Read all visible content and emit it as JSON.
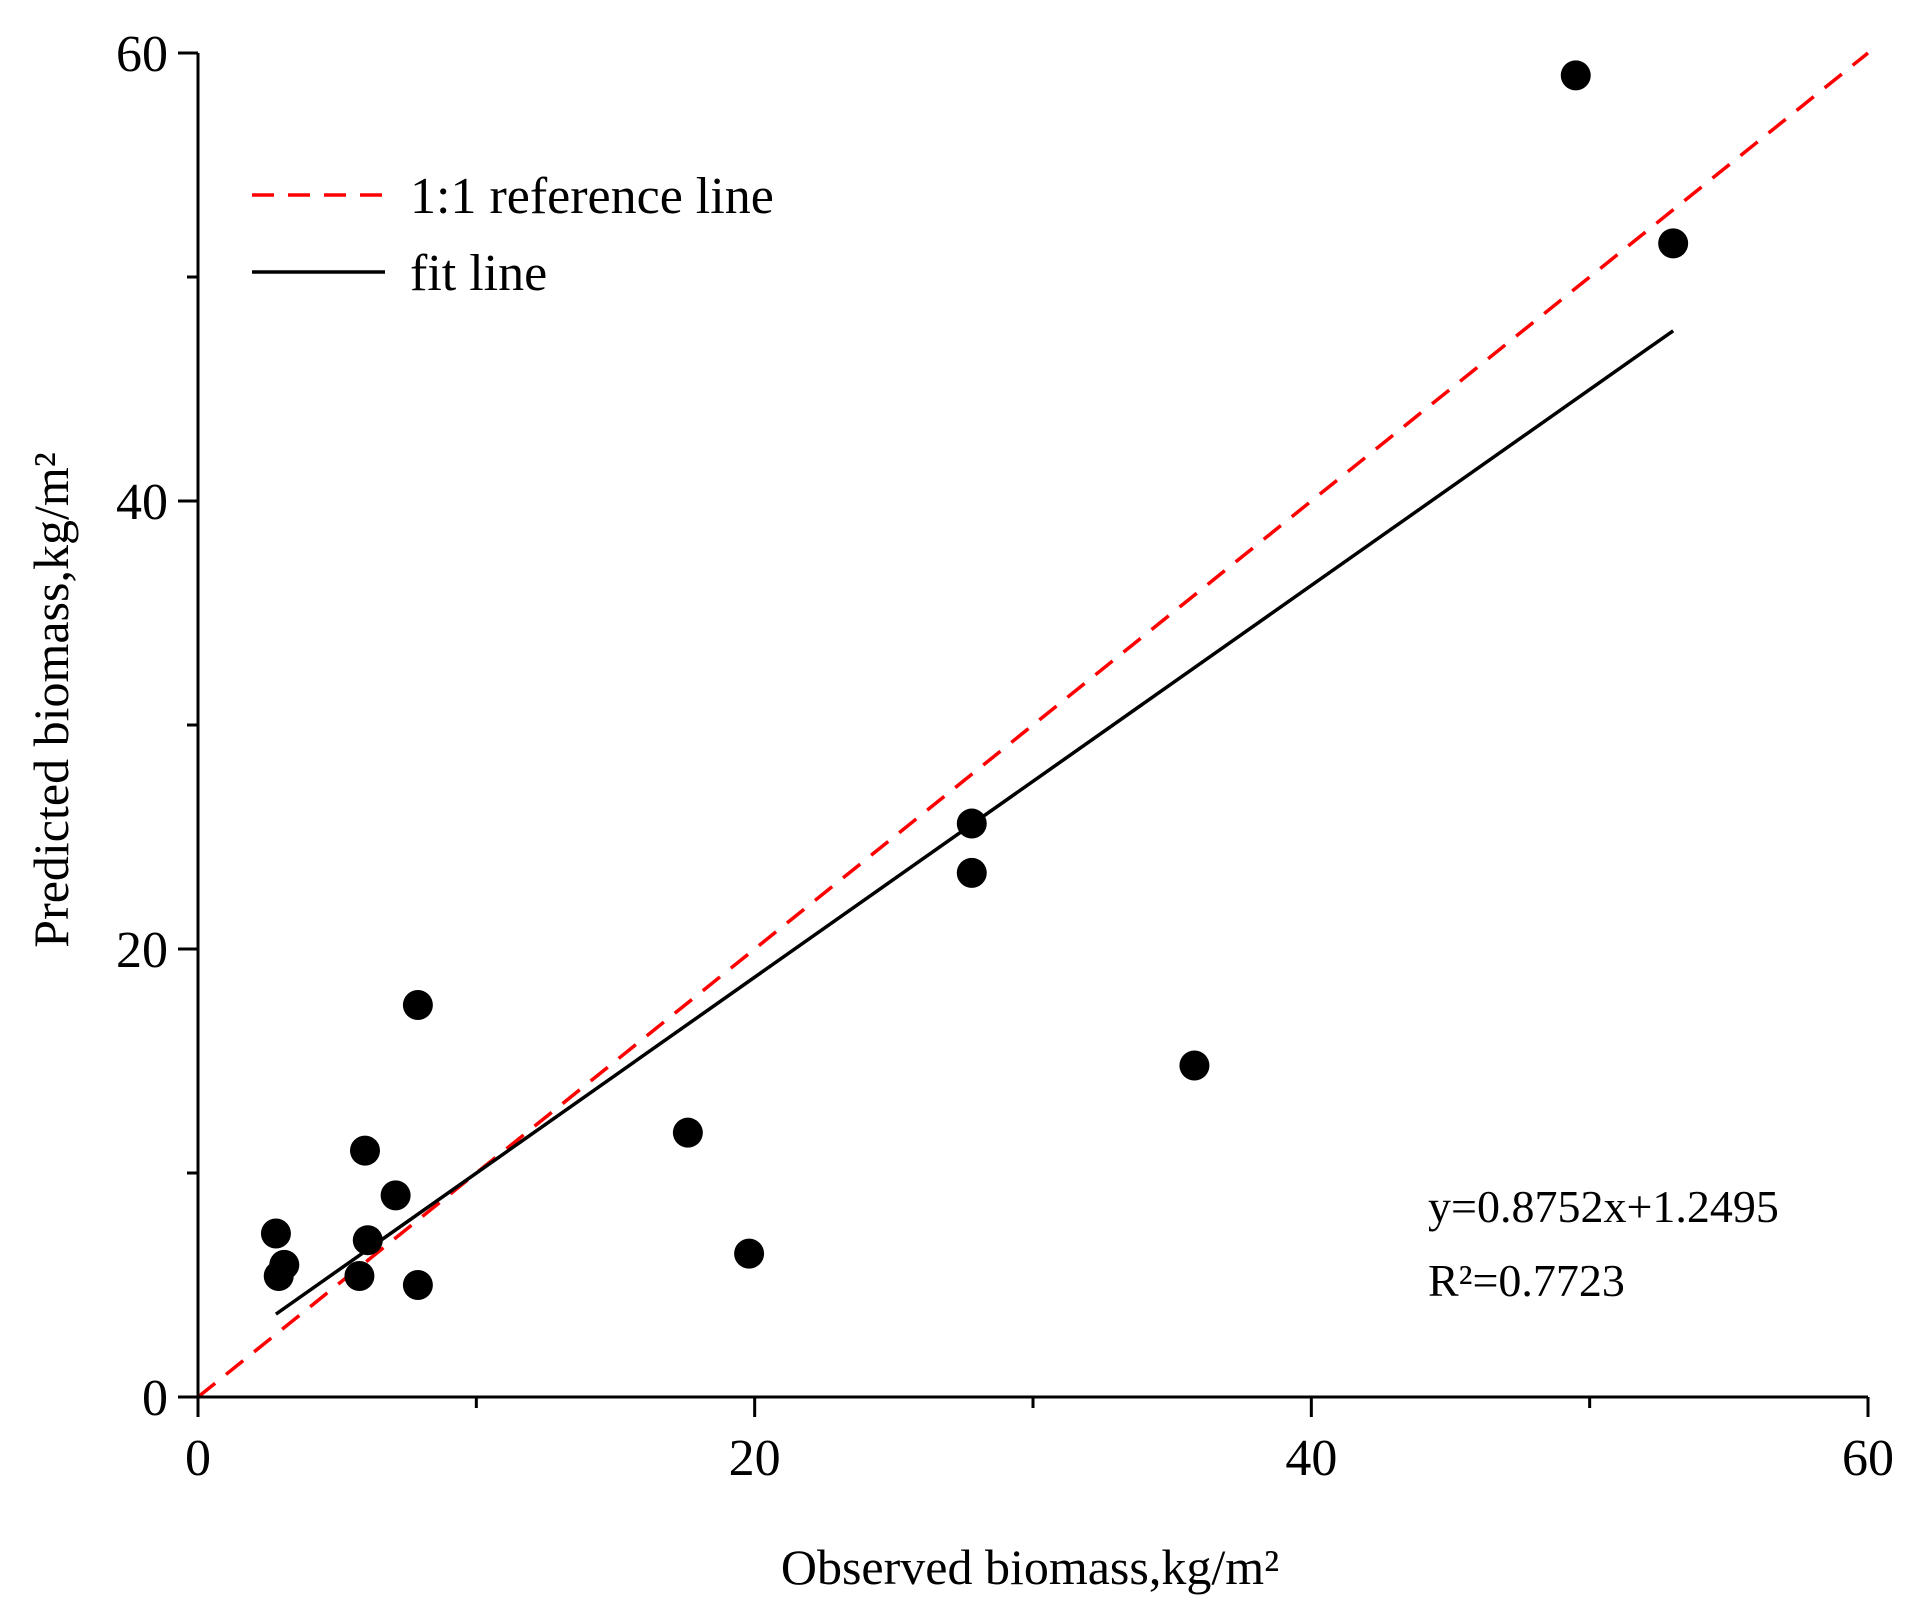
{
  "chart_data": {
    "type": "scatter",
    "title": "",
    "xlabel": "Observed biomass,kg/m²",
    "ylabel": "Predicted biomass,kg/m²",
    "xlim": [
      0,
      60
    ],
    "ylim": [
      0,
      60
    ],
    "xticks": [
      0,
      20,
      40,
      60
    ],
    "yticks": [
      0,
      20,
      40,
      60
    ],
    "x_minor_ticks": [
      10,
      30,
      50
    ],
    "y_minor_ticks": [
      10,
      30,
      50
    ],
    "grid": false,
    "legend_position": "top-left",
    "series": [
      {
        "name": "observations",
        "kind": "points",
        "color": "#000000",
        "points": [
          [
            2.8,
            7.3
          ],
          [
            3.1,
            5.9
          ],
          [
            2.9,
            5.4
          ],
          [
            5.8,
            5.4
          ],
          [
            6.0,
            11.0
          ],
          [
            6.1,
            7.0
          ],
          [
            7.1,
            9.0
          ],
          [
            7.9,
            17.5
          ],
          [
            7.9,
            5.0
          ],
          [
            17.6,
            11.8
          ],
          [
            19.8,
            6.4
          ],
          [
            27.8,
            25.6
          ],
          [
            27.8,
            23.4
          ],
          [
            35.8,
            14.8
          ],
          [
            49.5,
            59.0
          ],
          [
            53.0,
            51.5
          ]
        ]
      },
      {
        "name": "1:1 reference line",
        "kind": "line",
        "style": "dashed",
        "color": "#ff0000",
        "x": [
          0,
          60
        ],
        "y": [
          0,
          60
        ]
      },
      {
        "name": "fit line",
        "kind": "line",
        "style": "solid",
        "color": "#000000",
        "x": [
          2.8,
          53.0
        ],
        "y": [
          3.7,
          47.6
        ]
      }
    ],
    "legend": [
      "1:1 reference line",
      "fit line"
    ],
    "annotations": {
      "equation": "y=0.8752x+1.2495",
      "r_squared": "R²=0.7723"
    }
  }
}
